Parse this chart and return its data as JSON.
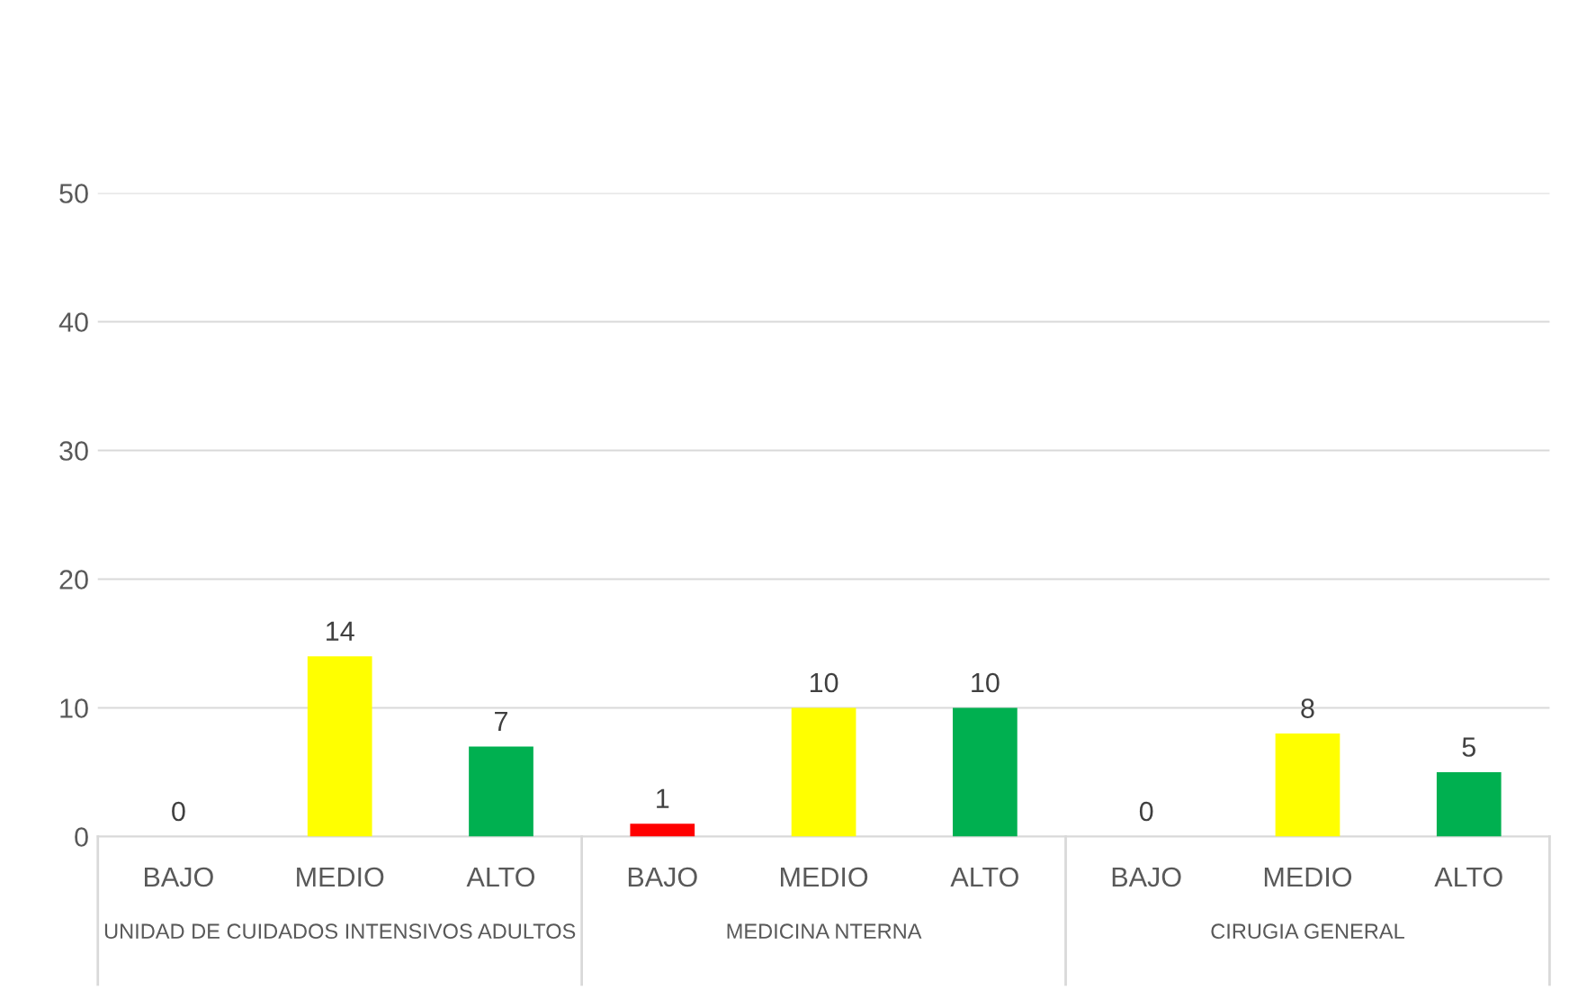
{
  "chart_data": {
    "type": "bar",
    "categories": [
      "BAJO",
      "MEDIO",
      "ALTO",
      "BAJO",
      "MEDIO",
      "ALTO",
      "BAJO",
      "MEDIO",
      "ALTO"
    ],
    "values": [
      0,
      14,
      7,
      1,
      10,
      10,
      0,
      8,
      5
    ],
    "colors": [
      "#ff0000",
      "#ffff00",
      "#00b050",
      "#ff0000",
      "#ffff00",
      "#00b050",
      "#ff0000",
      "#ffff00",
      "#00b050"
    ],
    "annotations": [
      "UNIDAD DE CUIDADOS INTENSIVOS ADULTOS",
      "MEDICINA NTERNA",
      "CIRUGIA GENERAL"
    ],
    "ylim": [
      0,
      50
    ],
    "yticks": [
      0,
      10,
      20,
      30,
      40,
      50
    ],
    "grid": "y",
    "data_labels": true
  }
}
